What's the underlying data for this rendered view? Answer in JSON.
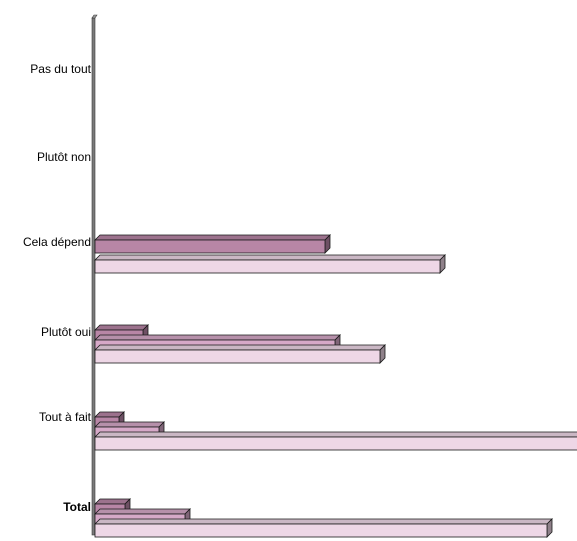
{
  "chart_data": {
    "type": "bar",
    "orientation": "horizontal",
    "style": "3d",
    "categories": [
      "Pas du tout",
      "Plutôt non",
      "Cela dépend",
      "Plutôt oui",
      "Tout à fait",
      "Total"
    ],
    "bold_categories": [
      "Total"
    ],
    "series": [
      {
        "color": "#b886a6",
        "values": [
          0,
          0,
          230,
          48,
          24,
          30
        ]
      },
      {
        "color": "#d6a9c8",
        "values": [
          0,
          0,
          0,
          240,
          64,
          90
        ]
      },
      {
        "color": "#eed7e6",
        "values": [
          0,
          0,
          345,
          285,
          484,
          452
        ]
      }
    ],
    "xlim": [
      0,
      484
    ],
    "title": "",
    "xlabel": "",
    "ylabel": "",
    "grid": false,
    "legend": "none"
  }
}
